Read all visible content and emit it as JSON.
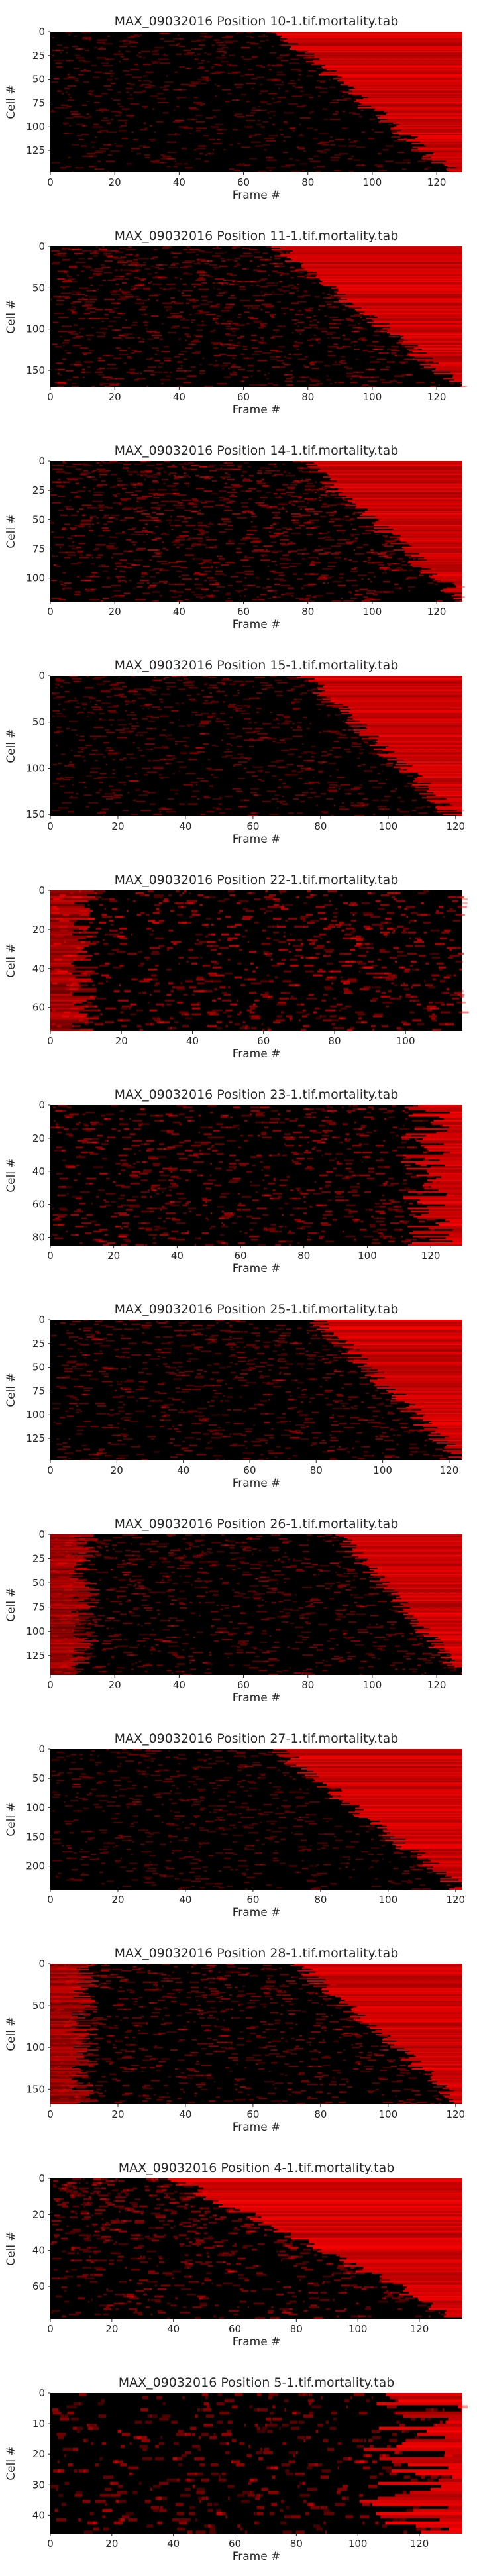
{
  "chart_data": [
    {
      "type": "heatmap",
      "title": "MAX_09032016 Position 10-1.tif.mortality.tab",
      "xlabel": "Frame #",
      "ylabel": "Cell #",
      "xlim": [
        0,
        128
      ],
      "ylim": [
        148,
        0
      ],
      "xticks": [
        0,
        20,
        40,
        60,
        80,
        100,
        120
      ],
      "yticks": [
        0,
        25,
        50,
        75,
        100,
        125
      ],
      "colormap": [
        "#000000",
        "#ff0000"
      ],
      "grid": false,
      "sort": "death",
      "onset_start": 0.55,
      "onset_end": 0.97,
      "noise": 0.35,
      "seed": 101
    },
    {
      "type": "heatmap",
      "title": "MAX_09032016 Position 11-1.tif.mortality.tab",
      "xlabel": "Frame #",
      "ylabel": "Cell #",
      "xlim": [
        0,
        128
      ],
      "ylim": [
        170,
        0
      ],
      "xticks": [
        0,
        20,
        40,
        60,
        80,
        100,
        120
      ],
      "yticks": [
        0,
        50,
        100,
        150
      ],
      "colormap": [
        "#000000",
        "#ff0000"
      ],
      "grid": false,
      "sort": "death",
      "onset_start": 0.55,
      "onset_end": 1.0,
      "noise": 0.55,
      "seed": 111
    },
    {
      "type": "heatmap",
      "title": "MAX_09032016 Position 14-1.tif.mortality.tab",
      "xlabel": "Frame #",
      "ylabel": "Cell #",
      "xlim": [
        0,
        128
      ],
      "ylim": [
        120,
        0
      ],
      "xticks": [
        0,
        20,
        40,
        60,
        80,
        100,
        120
      ],
      "yticks": [
        0,
        25,
        50,
        75,
        100
      ],
      "colormap": [
        "#000000",
        "#ff0000"
      ],
      "grid": false,
      "sort": "death",
      "onset_start": 0.62,
      "onset_end": 1.0,
      "noise": 0.6,
      "seed": 141
    },
    {
      "type": "heatmap",
      "title": "MAX_09032016 Position 15-1.tif.mortality.tab",
      "xlabel": "Frame #",
      "ylabel": "Cell #",
      "xlim": [
        0,
        122
      ],
      "ylim": [
        152,
        0
      ],
      "xticks": [
        0,
        20,
        40,
        60,
        80,
        100,
        120
      ],
      "yticks": [
        0,
        50,
        100,
        150
      ],
      "colormap": [
        "#000000",
        "#ff0000"
      ],
      "grid": false,
      "sort": "death",
      "onset_start": 0.62,
      "onset_end": 0.98,
      "noise": 0.4,
      "seed": 151
    },
    {
      "type": "heatmap",
      "title": "MAX_09032016 Position 22-1.tif.mortality.tab",
      "xlabel": "Frame #",
      "ylabel": "Cell #",
      "xlim": [
        0,
        116
      ],
      "ylim": [
        72,
        0
      ],
      "xticks": [
        0,
        20,
        40,
        60,
        80,
        100
      ],
      "yticks": [
        0,
        20,
        40,
        60
      ],
      "colormap": [
        "#000000",
        "#ff0000"
      ],
      "grid": false,
      "sort": "diffuse",
      "onset_start": 0.5,
      "onset_end": 1.0,
      "noise": 0.75,
      "seed": 221
    },
    {
      "type": "heatmap",
      "title": "MAX_09032016 Position 23-1.tif.mortality.tab",
      "xlabel": "Frame #",
      "ylabel": "Cell #",
      "xlim": [
        0,
        130
      ],
      "ylim": [
        85,
        0
      ],
      "xticks": [
        0,
        20,
        40,
        60,
        80,
        100,
        120
      ],
      "yticks": [
        0,
        20,
        40,
        60,
        80
      ],
      "colormap": [
        "#000000",
        "#ff0000"
      ],
      "grid": false,
      "sort": "late",
      "onset_start": 0.85,
      "onset_end": 0.98,
      "noise": 0.6,
      "seed": 231
    },
    {
      "type": "heatmap",
      "title": "MAX_09032016 Position 25-1.tif.mortality.tab",
      "xlabel": "Frame #",
      "ylabel": "Cell #",
      "xlim": [
        0,
        124
      ],
      "ylim": [
        148,
        0
      ],
      "xticks": [
        0,
        20,
        40,
        60,
        80,
        100,
        120
      ],
      "yticks": [
        0,
        25,
        50,
        75,
        100,
        125
      ],
      "colormap": [
        "#000000",
        "#ff0000"
      ],
      "grid": false,
      "sort": "death",
      "onset_start": 0.65,
      "onset_end": 1.0,
      "noise": 0.45,
      "seed": 251
    },
    {
      "type": "heatmap",
      "title": "MAX_09032016 Position 26-1.tif.mortality.tab",
      "xlabel": "Frame #",
      "ylabel": "Cell #",
      "xlim": [
        0,
        128
      ],
      "ylim": [
        145,
        0
      ],
      "xticks": [
        0,
        20,
        40,
        60,
        80,
        100,
        120
      ],
      "yticks": [
        0,
        25,
        50,
        75,
        100,
        125
      ],
      "colormap": [
        "#000000",
        "#ff0000"
      ],
      "grid": false,
      "sort": "early",
      "onset_start": 0.7,
      "onset_end": 1.0,
      "noise": 0.45,
      "seed": 261
    },
    {
      "type": "heatmap",
      "title": "MAX_09032016 Position 27-1.tif.mortality.tab",
      "xlabel": "Frame #",
      "ylabel": "Cell #",
      "xlim": [
        0,
        122
      ],
      "ylim": [
        240,
        0
      ],
      "xticks": [
        0,
        20,
        40,
        60,
        80,
        100,
        120
      ],
      "yticks": [
        0,
        50,
        100,
        150,
        200
      ],
      "colormap": [
        "#000000",
        "#ff0000"
      ],
      "grid": false,
      "sort": "death",
      "onset_start": 0.55,
      "onset_end": 1.0,
      "noise": 0.3,
      "seed": 271
    },
    {
      "type": "heatmap",
      "title": "MAX_09032016 Position 28-1.tif.mortality.tab",
      "xlabel": "Frame #",
      "ylabel": "Cell #",
      "xlim": [
        0,
        122
      ],
      "ylim": [
        168,
        0
      ],
      "xticks": [
        0,
        20,
        40,
        60,
        80,
        100,
        120
      ],
      "yticks": [
        0,
        50,
        100,
        150
      ],
      "colormap": [
        "#000000",
        "#ff0000"
      ],
      "grid": false,
      "sort": "early",
      "onset_start": 0.6,
      "onset_end": 1.0,
      "noise": 0.45,
      "seed": 281
    },
    {
      "type": "heatmap",
      "title": "MAX_09032016 Position 4-1.tif.mortality.tab",
      "xlabel": "Frame #",
      "ylabel": "Cell #",
      "xlim": [
        0,
        134
      ],
      "ylim": [
        78,
        0
      ],
      "xticks": [
        0,
        20,
        40,
        60,
        80,
        100,
        120
      ],
      "yticks": [
        0,
        20,
        40,
        60
      ],
      "colormap": [
        "#000000",
        "#ff0000"
      ],
      "grid": false,
      "sort": "death",
      "onset_start": 0.3,
      "onset_end": 1.0,
      "noise": 0.5,
      "seed": 41
    },
    {
      "type": "heatmap",
      "title": "MAX_09032016 Position 5-1.tif.mortality.tab",
      "xlabel": "Frame #",
      "ylabel": "Cell #",
      "xlim": [
        0,
        134
      ],
      "ylim": [
        46,
        0
      ],
      "xticks": [
        0,
        20,
        40,
        60,
        80,
        100,
        120
      ],
      "yticks": [
        0,
        10,
        20,
        30,
        40
      ],
      "colormap": [
        "#000000",
        "#ff0000"
      ],
      "grid": false,
      "sort": "late",
      "onset_start": 0.75,
      "onset_end": 1.0,
      "noise": 0.55,
      "seed": 51
    }
  ]
}
